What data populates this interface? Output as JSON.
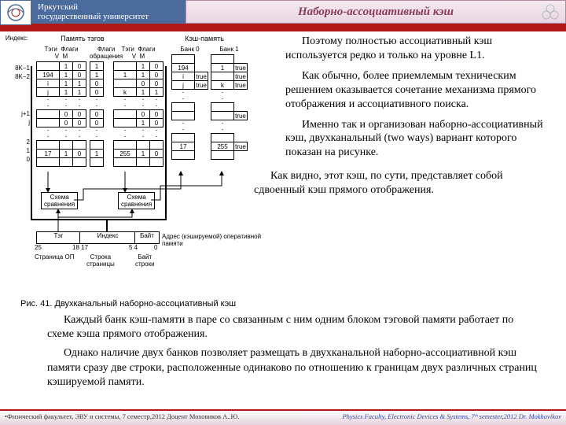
{
  "university": {
    "line1": "Иркутский",
    "line2": "государственный университет"
  },
  "title": "Наборно-ассоциативный кэш",
  "para1": "Поэтому полностью ассоциативный кэш используется редко и только на уровне L1.",
  "para2": "Как обычно, более приемлемым техническим решением оказывается сочетание механизма прямого отображения и ассоциативного поиска.",
  "para3": "Именно так и организован наборно-ассоциативный кэш, двухканальный (two ways) вариант которого показан на рисунке.",
  "para4": "Как видно, этот кэш, по сути, представляет собой сдвоенный кэш прямого отображения.",
  "para5": "Каждый банк кэш-памяти в паре со связанным с ним одним блоком тэговой памяти работает по схеме кэша прямого отображения.",
  "para6": "Однако наличие двух банков позволяет размещать в двухканальной наборно-ассоциативной кэш памяти сразу две строки, расположенные одинаково по отношению к границам двух различных страниц кэшируемой памяти.",
  "figcaption": "Рис. 41. Двухканальный наборно-ассоциативный кэш",
  "footer_ru": "Физический факультет, ЭВУ и системы, 7 семестр,2012 Доцент Моховиков А..Ю.",
  "footer_en": "Physics Faculty, Electronic Devices & Systems, 7ᵗʰ semester,2012  Dr. Mokhovikov",
  "diagram": {
    "headers": {
      "tag_mem": "Память тэгов",
      "cache_mem": "Кэш-память",
      "index": "Индекс",
      "tags": "Тэги",
      "flagsV": "Флаги\nV  M",
      "flags_upd": "Флаги\nобращения",
      "bank0": "Банк 0",
      "bank1": "Банк 1"
    },
    "index_labels": [
      "8K−1",
      "8K−2",
      "j+1",
      "j",
      "2",
      "1",
      "0"
    ],
    "tag0": {
      "rows": [
        [
          "",
          "1",
          "0"
        ],
        [
          "194",
          "1",
          "0"
        ],
        [
          "i",
          "1",
          "1"
        ],
        [
          "j",
          "1",
          "1"
        ]
      ],
      "dots": true,
      "mid": [
        [
          "",
          "0",
          "0"
        ],
        [
          "",
          "0",
          "0"
        ]
      ],
      "dots2": true,
      "bot": [
        [
          "",
          "",
          ""
        ],
        [
          "17",
          "1",
          "0"
        ],
        [
          "",
          "",
          ""
        ]
      ]
    },
    "upd": {
      "rows": [
        [
          "1"
        ],
        [
          "1"
        ],
        [
          "0"
        ],
        [
          "0"
        ]
      ],
      "dots": true,
      "mid": [
        [
          "0"
        ],
        [
          "0"
        ]
      ],
      "dots2": true,
      "bot": [
        [
          ""
        ],
        [
          "1"
        ],
        [
          ""
        ]
      ]
    },
    "tag1": {
      "rows": [
        [
          "",
          "1",
          "0"
        ],
        [
          "1",
          "1",
          "0"
        ],
        [
          "",
          "0",
          "0"
        ],
        [
          "k",
          "1",
          "1"
        ]
      ],
      "dots": true,
      "mid": [
        [
          "",
          "0",
          "0"
        ],
        [
          "",
          "1",
          "0"
        ]
      ],
      "dots2": true,
      "bot": [
        [
          "",
          "",
          ""
        ],
        [
          "255",
          "1",
          "0"
        ],
        [
          "",
          "",
          ""
        ]
      ]
    },
    "bank0": {
      "rows": [
        [
          ""
        ],
        [
          "194"
        ],
        [
          "i",
          true
        ],
        [
          "j",
          true
        ]
      ],
      "dots": true,
      "mid": [
        [
          ""
        ],
        [
          ""
        ]
      ],
      "dots2": true,
      "bot": [
        [
          ""
        ],
        [
          "17"
        ],
        [
          ""
        ]
      ]
    },
    "bank1": {
      "rows": [
        [
          ""
        ],
        [
          "1",
          true
        ],
        [
          "",
          true
        ],
        [
          "k",
          true
        ]
      ],
      "dots": true,
      "mid": [
        [
          ""
        ],
        [
          "",
          true
        ]
      ],
      "dots2": true,
      "bot": [
        [
          ""
        ],
        [
          "255",
          true
        ],
        [
          ""
        ]
      ]
    },
    "cmp": "Схема\nсравнения",
    "addr_label": "Адрес (кэшируемой) оперативной памяти",
    "addr_fields": [
      "Тэг",
      "Индекс",
      "Байт"
    ],
    "addr_bits": [
      "25",
      "18 17",
      "5  4",
      "0"
    ],
    "page_lbl": "Страница ОП",
    "line_lbl": "Строка\nстраницы",
    "byte_lbl": "Байт\nстроки"
  },
  "colors": {
    "uni_bg": "#4a6b9b",
    "title_text": "#8b3a5a",
    "red": "#b01818"
  }
}
